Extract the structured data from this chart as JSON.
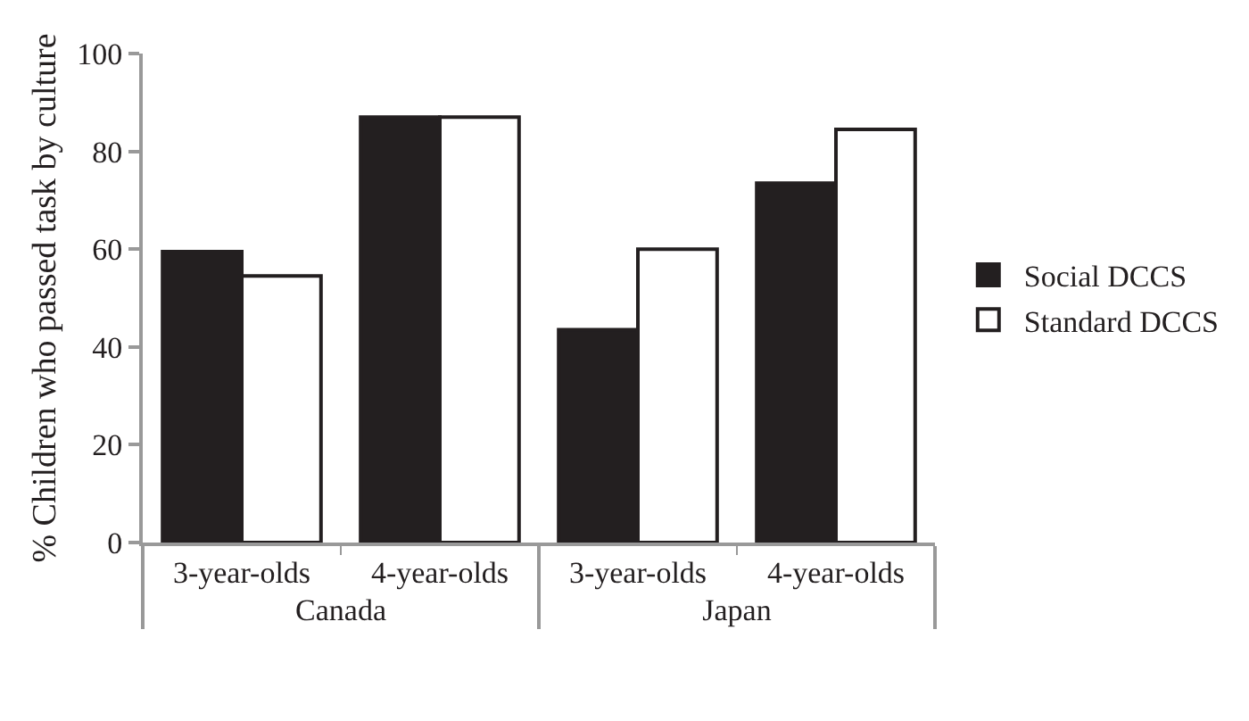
{
  "chart_data": {
    "type": "bar",
    "ylabel": "% Children who passed task by culture",
    "categories": [
      "3-year-olds",
      "4-year-olds",
      "3-year-olds",
      "4-year-olds"
    ],
    "series": [
      {
        "name": "Social DCCS",
        "color": "#231f20",
        "values": [
          59.5,
          87,
          43.5,
          73.5
        ]
      },
      {
        "name": "Standard DCCS",
        "color": "#ffffff",
        "values": [
          54.5,
          87,
          60,
          84.5
        ]
      }
    ],
    "annotations": [
      "Canada",
      "Japan"
    ],
    "ylim": [
      0,
      100
    ],
    "yticks": [
      0,
      20,
      40,
      60,
      80,
      100
    ],
    "grid": false,
    "legend": "right"
  }
}
